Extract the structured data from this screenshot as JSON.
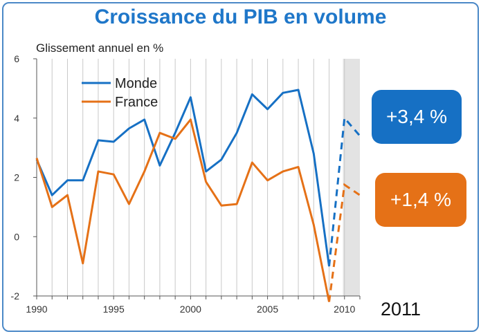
{
  "title": "Croissance du PIB en volume",
  "badges": {
    "monde": "+3,4 %",
    "france": "+1,4 %"
  },
  "forecast_year_label": "2011",
  "colors": {
    "monde": "#1670c4",
    "france": "#e57117",
    "title": "#1f77c9",
    "shade": "#e3e3e3",
    "frame": "#4a88c7"
  },
  "chart_data": {
    "type": "line",
    "title": "Croissance du PIB en volume",
    "ylabel": "Glissement annuel en %",
    "xlabel": "",
    "ylim": [
      -2,
      6
    ],
    "xlim": [
      1990,
      2011
    ],
    "yticks": [
      -2,
      0,
      2,
      4,
      6
    ],
    "xticks": [
      1990,
      1995,
      2000,
      2005,
      2010
    ],
    "grid": "vertical",
    "legend": "top-left",
    "shaded_x": [
      2009.9,
      2011
    ],
    "series": [
      {
        "name": "Monde",
        "color": "#1670c4",
        "x": [
          1990,
          1991,
          1992,
          1993,
          1994,
          1995,
          1996,
          1997,
          1998,
          1999,
          2000,
          2001,
          2002,
          2003,
          2004,
          2005,
          2006,
          2007,
          2008,
          2009
        ],
        "values": [
          2.6,
          1.4,
          1.9,
          1.9,
          3.25,
          3.2,
          3.65,
          3.95,
          2.4,
          3.5,
          4.7,
          2.2,
          2.6,
          3.5,
          4.8,
          4.3,
          4.85,
          4.95,
          2.8,
          -1.0
        ],
        "forecast": {
          "x": [
            2009,
            2010,
            2011
          ],
          "values": [
            -1.0,
            4.0,
            3.4
          ]
        }
      },
      {
        "name": "France",
        "color": "#e57117",
        "x": [
          1990,
          1991,
          1992,
          1993,
          1994,
          1995,
          1996,
          1997,
          1998,
          1999,
          2000,
          2001,
          2002,
          2003,
          2004,
          2005,
          2006,
          2007,
          2008,
          2009
        ],
        "values": [
          2.65,
          1.0,
          1.4,
          -0.9,
          2.2,
          2.1,
          1.1,
          2.2,
          3.5,
          3.3,
          3.95,
          1.85,
          1.05,
          1.1,
          2.5,
          1.9,
          2.2,
          2.35,
          0.4,
          -2.2
        ],
        "forecast": {
          "x": [
            2009,
            2010,
            2011
          ],
          "values": [
            -2.2,
            1.75,
            1.4
          ]
        }
      }
    ]
  }
}
